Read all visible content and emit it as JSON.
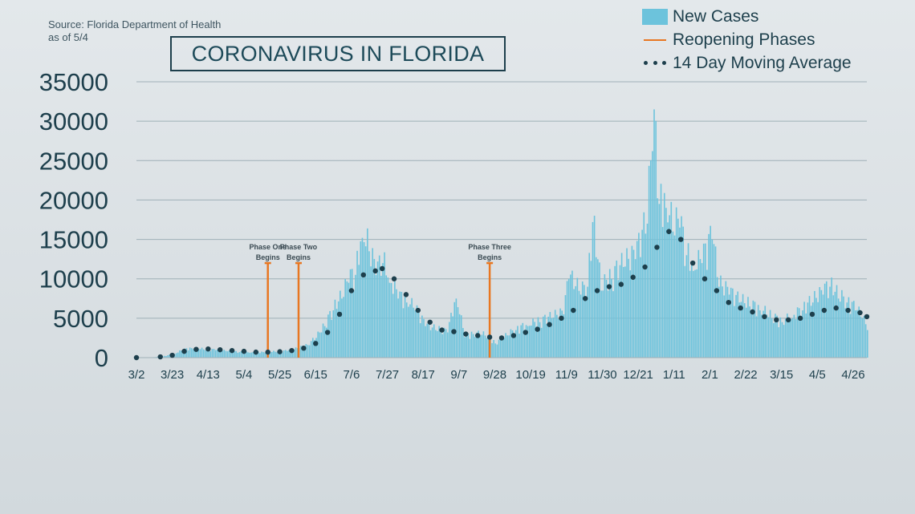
{
  "source": {
    "line1": "Source: Florida Department of Health",
    "line2": "as of 5/4"
  },
  "colors": {
    "bars": "#6cc3dc",
    "phase_lines": "#e87722",
    "moving_avg": "#1d3f4c",
    "grid": "#9fb0b7"
  },
  "legend": {
    "new_cases": "New Cases",
    "reopening": "Reopening Phases",
    "moving_avg": "14 Day Moving Average"
  },
  "chart_data": {
    "type": "bar",
    "title": "CORONAVIRUS IN FLORIDA",
    "ylim": [
      0,
      35000
    ],
    "yticks": [
      0,
      5000,
      10000,
      15000,
      20000,
      25000,
      30000,
      35000
    ],
    "xlim": [
      "2020-03-02",
      "2021-05-04"
    ],
    "xticks": [
      "3/2",
      "3/23",
      "4/13",
      "5/4",
      "5/25",
      "6/15",
      "7/6",
      "7/27",
      "8/17",
      "9/7",
      "9/28",
      "10/19",
      "11/9",
      "11/30",
      "12/21",
      "1/11",
      "2/1",
      "2/22",
      "3/15",
      "4/5",
      "4/26"
    ],
    "grid": true,
    "legend_position": "top-right",
    "series": [
      {
        "name": "New Cases",
        "type": "bar",
        "values": [
          [
            "2020-03-02",
            0
          ],
          [
            "2020-03-10",
            20
          ],
          [
            "2020-03-17",
            150
          ],
          [
            "2020-03-24",
            450
          ],
          [
            "2020-03-28",
            900
          ],
          [
            "2020-04-03",
            1200
          ],
          [
            "2020-04-10",
            1050
          ],
          [
            "2020-04-17",
            950
          ],
          [
            "2020-04-24",
            800
          ],
          [
            "2020-05-01",
            700
          ],
          [
            "2020-05-08",
            650
          ],
          [
            "2020-05-15",
            700
          ],
          [
            "2020-05-22",
            750
          ],
          [
            "2020-05-29",
            850
          ],
          [
            "2020-06-05",
            1200
          ],
          [
            "2020-06-10",
            1600
          ],
          [
            "2020-06-15",
            2500
          ],
          [
            "2020-06-20",
            4000
          ],
          [
            "2020-06-25",
            6000
          ],
          [
            "2020-06-30",
            7500
          ],
          [
            "2020-07-04",
            9500
          ],
          [
            "2020-07-08",
            10500
          ],
          [
            "2020-07-12",
            15200
          ],
          [
            "2020-07-16",
            13500
          ],
          [
            "2020-07-20",
            10500
          ],
          [
            "2020-07-24",
            12000
          ],
          [
            "2020-07-28",
            9500
          ],
          [
            "2020-08-02",
            7500
          ],
          [
            "2020-08-07",
            7000
          ],
          [
            "2020-08-12",
            6000
          ],
          [
            "2020-08-18",
            4000
          ],
          [
            "2020-08-24",
            3500
          ],
          [
            "2020-08-31",
            3200
          ],
          [
            "2020-09-05",
            7500
          ],
          [
            "2020-09-10",
            2600
          ],
          [
            "2020-09-15",
            3000
          ],
          [
            "2020-09-22",
            2800
          ],
          [
            "2020-09-28",
            1800
          ],
          [
            "2020-10-03",
            2500
          ],
          [
            "2020-10-10",
            3500
          ],
          [
            "2020-10-17",
            4000
          ],
          [
            "2020-10-24",
            4500
          ],
          [
            "2020-10-31",
            5000
          ],
          [
            "2020-11-07",
            5500
          ],
          [
            "2020-11-10",
            10000
          ],
          [
            "2020-11-17",
            8000
          ],
          [
            "2020-11-21",
            9000
          ],
          [
            "2020-11-24",
            17200
          ],
          [
            "2020-11-29",
            8500
          ],
          [
            "2020-12-05",
            10000
          ],
          [
            "2020-12-12",
            11500
          ],
          [
            "2020-12-19",
            12500
          ],
          [
            "2020-12-26",
            17000
          ],
          [
            "2020-12-30",
            31500
          ],
          [
            "2021-01-02",
            19500
          ],
          [
            "2021-01-06",
            19000
          ],
          [
            "2021-01-10",
            16000
          ],
          [
            "2021-01-14",
            16500
          ],
          [
            "2021-01-18",
            13000
          ],
          [
            "2021-01-22",
            11000
          ],
          [
            "2021-01-27",
            12000
          ],
          [
            "2021-02-02",
            15000
          ],
          [
            "2021-02-06",
            9000
          ],
          [
            "2021-02-12",
            8000
          ],
          [
            "2021-02-18",
            7000
          ],
          [
            "2021-02-24",
            6500
          ],
          [
            "2021-03-02",
            6000
          ],
          [
            "2021-03-09",
            5000
          ],
          [
            "2021-03-15",
            4500
          ],
          [
            "2021-03-21",
            5000
          ],
          [
            "2021-03-27",
            6000
          ],
          [
            "2021-04-02",
            7000
          ],
          [
            "2021-04-08",
            8000
          ],
          [
            "2021-04-12",
            9000
          ],
          [
            "2021-04-17",
            7500
          ],
          [
            "2021-04-22",
            7000
          ],
          [
            "2021-04-27",
            6000
          ],
          [
            "2021-05-01",
            5000
          ],
          [
            "2021-05-04",
            3500
          ]
        ]
      },
      {
        "name": "14 Day Moving Average",
        "type": "line-dotted",
        "values": [
          [
            "2020-03-02",
            0
          ],
          [
            "2020-03-16",
            100
          ],
          [
            "2020-03-23",
            300
          ],
          [
            "2020-03-30",
            800
          ],
          [
            "2020-04-06",
            1050
          ],
          [
            "2020-04-13",
            1100
          ],
          [
            "2020-04-20",
            1000
          ],
          [
            "2020-04-27",
            900
          ],
          [
            "2020-05-04",
            800
          ],
          [
            "2020-05-11",
            700
          ],
          [
            "2020-05-18",
            700
          ],
          [
            "2020-05-25",
            750
          ],
          [
            "2020-06-01",
            900
          ],
          [
            "2020-06-08",
            1200
          ],
          [
            "2020-06-15",
            1800
          ],
          [
            "2020-06-22",
            3200
          ],
          [
            "2020-06-29",
            5500
          ],
          [
            "2020-07-06",
            8500
          ],
          [
            "2020-07-13",
            10500
          ],
          [
            "2020-07-20",
            11000
          ],
          [
            "2020-07-24",
            11300
          ],
          [
            "2020-07-31",
            10000
          ],
          [
            "2020-08-07",
            8000
          ],
          [
            "2020-08-14",
            6000
          ],
          [
            "2020-08-21",
            4500
          ],
          [
            "2020-08-28",
            3500
          ],
          [
            "2020-09-04",
            3300
          ],
          [
            "2020-09-11",
            3000
          ],
          [
            "2020-09-18",
            2800
          ],
          [
            "2020-09-25",
            2600
          ],
          [
            "2020-10-02",
            2500
          ],
          [
            "2020-10-09",
            2800
          ],
          [
            "2020-10-16",
            3200
          ],
          [
            "2020-10-23",
            3600
          ],
          [
            "2020-10-30",
            4200
          ],
          [
            "2020-11-06",
            5000
          ],
          [
            "2020-11-13",
            6000
          ],
          [
            "2020-11-20",
            7500
          ],
          [
            "2020-11-27",
            8500
          ],
          [
            "2020-12-04",
            9000
          ],
          [
            "2020-12-11",
            9300
          ],
          [
            "2020-12-18",
            10200
          ],
          [
            "2020-12-25",
            11500
          ],
          [
            "2021-01-01",
            14000
          ],
          [
            "2021-01-08",
            16000
          ],
          [
            "2021-01-15",
            15000
          ],
          [
            "2021-01-22",
            12000
          ],
          [
            "2021-01-29",
            10000
          ],
          [
            "2021-02-05",
            8500
          ],
          [
            "2021-02-12",
            7000
          ],
          [
            "2021-02-19",
            6300
          ],
          [
            "2021-02-26",
            5800
          ],
          [
            "2021-03-05",
            5200
          ],
          [
            "2021-03-12",
            4800
          ],
          [
            "2021-03-19",
            4800
          ],
          [
            "2021-03-26",
            5000
          ],
          [
            "2021-04-02",
            5500
          ],
          [
            "2021-04-09",
            6000
          ],
          [
            "2021-04-16",
            6300
          ],
          [
            "2021-04-23",
            6000
          ],
          [
            "2021-04-30",
            5700
          ],
          [
            "2021-05-04",
            5200
          ]
        ]
      }
    ],
    "annotations": [
      {
        "date": "2020-05-18",
        "value": 12000,
        "label1": "Phase One",
        "label2": "Begins"
      },
      {
        "date": "2020-06-05",
        "value": 12000,
        "label1": "Phase Two",
        "label2": "Begins"
      },
      {
        "date": "2020-09-25",
        "value": 12000,
        "label1": "Phase Three",
        "label2": "Begins"
      }
    ]
  }
}
